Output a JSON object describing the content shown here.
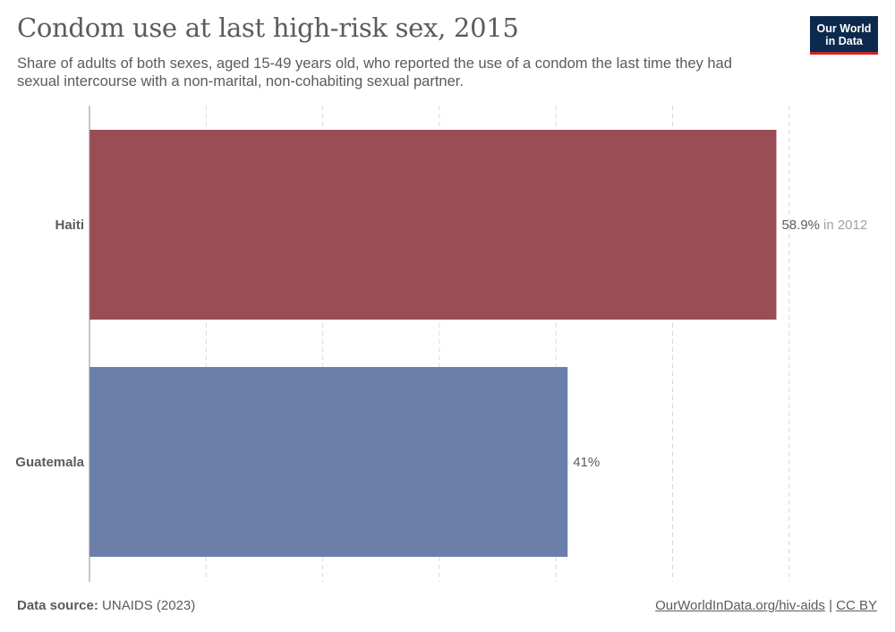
{
  "header": {
    "title": "Condom use at last high-risk sex, 2015",
    "subtitle": "Share of adults of both sexes, aged 15-49 years old, who reported the use of a condom the last time they had sexual intercourse with a non-marital, non-cohabiting sexual partner."
  },
  "logo": {
    "line1": "Our World",
    "line2": "in Data"
  },
  "footer": {
    "source_label": "Data source:",
    "source_value": "UNAIDS (2023)",
    "url_text": "OurWorldInData.org/hiv-aids",
    "separator": "|",
    "license_text": "CC BY"
  },
  "colors": {
    "haiti": "#9a4d55",
    "guatemala": "#6a80aa",
    "logo_bg": "#0c2a4d",
    "logo_accent": "#ce261e"
  },
  "chart_data": {
    "type": "bar",
    "orientation": "horizontal",
    "title": "Condom use at last high-risk sex, 2015",
    "categories": [
      "Haiti",
      "Guatemala"
    ],
    "values": [
      58.9,
      41
    ],
    "value_labels": [
      "58.9%",
      "41%"
    ],
    "value_notes": [
      "in 2012",
      ""
    ],
    "colors": [
      "#9a4d55",
      "#6a80aa"
    ],
    "xlim": [
      0,
      60
    ],
    "grid": true
  }
}
